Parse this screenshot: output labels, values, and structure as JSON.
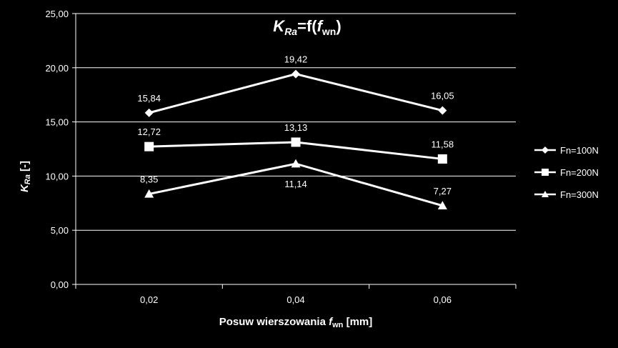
{
  "chart_data": {
    "type": "line",
    "title": {
      "main": "K",
      "main_sub": "Ra",
      "middle": "=f(",
      "var": "f",
      "var_sub": "wn",
      "end": ")"
    },
    "xlabel": {
      "text": "Posuw wierszowania ",
      "var": "f",
      "var_sub": "wn",
      "unit": " [mm]"
    },
    "ylabel": {
      "var": "K",
      "var_sub": "Ra",
      "unit": " [-]"
    },
    "categories": [
      "0,02",
      "0,04",
      "0,06"
    ],
    "ylim": [
      0,
      25
    ],
    "yticks": [
      0,
      5,
      10,
      15,
      20,
      25
    ],
    "ytick_labels": [
      "0,00",
      "5,00",
      "10,00",
      "15,00",
      "20,00",
      "25,00"
    ],
    "grid": "horizontal",
    "legend_position": "right",
    "series": [
      {
        "name": "Fn=100N",
        "marker": "diamond",
        "values": [
          15.84,
          19.42,
          16.05
        ],
        "labels": [
          "15,84",
          "19,42",
          "16,05"
        ],
        "label_pos": [
          "above",
          "above",
          "above"
        ]
      },
      {
        "name": "Fn=200N",
        "marker": "square",
        "values": [
          12.72,
          13.13,
          11.58
        ],
        "labels": [
          "12,72",
          "13,13",
          "11,58"
        ],
        "label_pos": [
          "above",
          "above",
          "above"
        ]
      },
      {
        "name": "Fn=300N",
        "marker": "triangle",
        "values": [
          8.35,
          11.14,
          7.27
        ],
        "labels": [
          "8,35",
          "11,14",
          "7,27"
        ],
        "label_pos": [
          "above",
          "below",
          "above"
        ]
      }
    ],
    "colors": {
      "background": "#000000",
      "line": "#ffffff",
      "grid": "#ffffff"
    }
  }
}
